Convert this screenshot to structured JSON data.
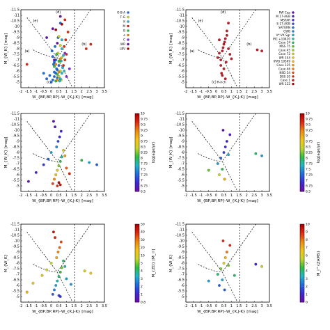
{
  "palette": {
    "rainbow": [
      "#6a0dad",
      "#3b2bd6",
      "#1f6fe0",
      "#21b8c9",
      "#2fbf3a",
      "#c8d52a",
      "#f2c418",
      "#f08a10",
      "#e02a10",
      "#b00000"
    ],
    "category_colors": {
      "O-B-A": "#1f6fe0",
      "F-G": "#c8d52a",
      "K": "#21b8c9",
      "M": "#e02a10",
      "B": "#2fbf3a",
      "e": "#f08a10",
      "C": "#8a2be2",
      "WR": "#6a0dad",
      "LBV": "#b00000"
    }
  },
  "chart_data": [
    {
      "type": "scatter",
      "panel": "top-left",
      "xlabel": "W_{BP,BP,RP}-W_{K,J-K} [mag]",
      "ylabel": "M_{W_K} [mag]",
      "xlim": [
        -2,
        3.5
      ],
      "ylim": [
        -4.5,
        -11.5
      ],
      "xticks": [
        "-2",
        "-1.5",
        "-1",
        "-0.5",
        "0",
        "0.5",
        "1",
        "1.5",
        "2",
        "2.5",
        "3",
        "3.5"
      ],
      "yticks": [
        "-11.5",
        "-11",
        "-10.5",
        "-10",
        "-9.5",
        "-9",
        "-8.5",
        "-8",
        "-7.5",
        "-7",
        "-6.5",
        "-6",
        "-5.5",
        "-5"
      ],
      "region_labels": [
        "(a)",
        "(b)",
        "(c)",
        "(d)",
        "(e)"
      ],
      "legend": {
        "placement": "right",
        "entries": [
          "O-B-A",
          "F-G",
          "K",
          "M",
          "B",
          "e",
          "C",
          "WR",
          "LBV"
        ]
      },
      "series": [
        {
          "name": "O-B-A",
          "x": [
            0.1,
            0.2,
            0.3,
            0.4,
            0.0,
            0.5,
            0.2,
            -0.1,
            0.3,
            0.1,
            0.4,
            0.2,
            0.35,
            0.15,
            0.05,
            -0.3,
            -0.5,
            0.25,
            0.45,
            0.6
          ],
          "y": [
            -5.2,
            -5.5,
            -5.8,
            -6.1,
            -5.0,
            -6.5,
            -6.8,
            -5.6,
            -7.0,
            -7.3,
            -5.4,
            -5.9,
            -6.2,
            -6.6,
            -7.8,
            -5.3,
            -5.8,
            -8.2,
            -9.0,
            -10.3
          ]
        },
        {
          "name": "F-G",
          "x": [
            0.5,
            0.6,
            0.55,
            0.7,
            0.45,
            0.65,
            0.6,
            0.5
          ],
          "y": [
            -5.5,
            -6.0,
            -6.8,
            -7.2,
            -7.6,
            -5.2,
            -8.3,
            -9.1
          ]
        },
        {
          "name": "K",
          "x": [
            0.6,
            0.7,
            0.75,
            0.65,
            0.8,
            0.7,
            0.55,
            0.85,
            0.7
          ],
          "y": [
            -5.3,
            -5.8,
            -6.3,
            -6.9,
            -7.4,
            -8.0,
            -5.1,
            -6.0,
            -8.8
          ]
        },
        {
          "name": "M",
          "x": [
            0.8,
            0.9,
            1.0,
            0.85,
            0.95,
            1.1,
            0.9,
            2.3,
            2.6,
            -1.6
          ],
          "y": [
            -6.5,
            -7.0,
            -7.5,
            -8.2,
            -8.8,
            -9.5,
            -10.6,
            -8.0,
            -8.4,
            -6.6
          ]
        },
        {
          "name": "B",
          "x": [
            0.3,
            0.4,
            0.2,
            0.5,
            0.35
          ],
          "y": [
            -5.1,
            -5.7,
            -6.4,
            -6.9,
            -7.5
          ]
        },
        {
          "name": "e",
          "x": [
            0.4,
            0.5,
            0.3,
            0.6
          ],
          "y": [
            -5.2,
            -5.9,
            -6.6,
            -7.1
          ]
        },
        {
          "name": "C",
          "x": [
            1.0,
            1.2,
            0.9
          ],
          "y": [
            -5.5,
            -6.2,
            -7.6
          ]
        },
        {
          "name": "WR",
          "x": [
            0.2,
            0.4,
            0.1,
            0.6,
            -0.3
          ],
          "y": [
            -7.0,
            -8.5,
            -9.8,
            -10.9,
            -9.0
          ]
        },
        {
          "name": "LBV",
          "x": [
            0.3,
            0.7
          ],
          "y": [
            -9.7,
            -10.2
          ]
        }
      ]
    },
    {
      "type": "scatter",
      "panel": "top-right",
      "xlabel": "W_{BP,BP,RP}-W_{K,J-K} [mag]",
      "ylabel": "M_{W_K} [mag]",
      "xlim": [
        -2,
        3.5
      ],
      "ylim": [
        -4.5,
        -11.5
      ],
      "xticks": [
        "-2",
        "-1.5",
        "-1",
        "-0.5",
        "0",
        "0.5",
        "1",
        "1.5",
        "2",
        "2.5",
        "3",
        "3.5"
      ],
      "yticks": [
        "-11.5",
        "-11",
        "-10.5",
        "-10",
        "-9.5",
        "-9",
        "-8.5",
        "-8",
        "-7.5",
        "-7",
        "-6.5",
        "-6",
        "-5.5",
        "-5"
      ],
      "region_labels": [
        "(a)",
        "(b)",
        "(c)",
        "(d)",
        "(e)"
      ],
      "annotation": "R-rich",
      "legend": {
        "placement": "right",
        "entries": [
          "RW Cep",
          "M 17-AGB",
          "MSTAR",
          "S 17-AGB",
          "SATURN",
          "CWB",
          "V* VX Sgr",
          "IRC +10420",
          "Case 14",
          "MSS 75",
          "Case 45",
          "Case 72",
          "WR 104",
          "IRAS 19569",
          "Case 125",
          "Case 46",
          "NSD 54",
          "DSS 20",
          "Case 1",
          "WR 122"
        ]
      },
      "series": [
        {
          "name": "stars",
          "x": [
            0.1,
            0.2,
            0.3,
            0.4,
            0.45,
            0.5,
            0.55,
            0.6,
            0.7,
            0.8,
            0.3,
            0.5,
            0.65,
            0.2,
            0.9,
            1.0,
            0.4,
            0.6,
            0.35,
            2.7,
            3.0,
            0.7,
            0.8
          ],
          "y": [
            -7.2,
            -7.6,
            -7.0,
            -7.8,
            -8.1,
            -8.4,
            -8.6,
            -8.9,
            -9.2,
            -8.0,
            -6.5,
            -6.2,
            -6.8,
            -8.8,
            -7.5,
            -7.1,
            -5.6,
            -5.3,
            -5.8,
            -7.9,
            -7.8,
            -9.6,
            -10.3
          ]
        }
      ]
    },
    {
      "type": "scatter",
      "panel": "middle-left",
      "xlabel": "W_{BP,BP,RP}-W_{K,J-K} [mag]",
      "ylabel": "M_{W_K} [mag]",
      "xlim": [
        -2,
        3.5
      ],
      "ylim": [
        -4.5,
        -11.5
      ],
      "colorbar": {
        "label": "log(age/yr)",
        "min": 6.5,
        "max": 10,
        "ticks": [
          "6.5",
          "6.75",
          "7",
          "7.25",
          "7.5",
          "7.75",
          "8",
          "8.25",
          "8.5",
          "8.75",
          "9",
          "9.25",
          "9.5",
          "9.75",
          "10"
        ]
      },
      "series": [
        {
          "name": "stars",
          "x": [
            0.1,
            0.2,
            0.3,
            0.4,
            0.5,
            0.6,
            0.7,
            0.0,
            -0.2,
            -0.5,
            -1.0,
            -1.5,
            0.35,
            0.45,
            0.55,
            0.65,
            0.25,
            0.15,
            0.8,
            0.9,
            1.0,
            1.2,
            2.0,
            2.5,
            3.0,
            0.5,
            0.6,
            0.4
          ],
          "y": [
            -5.2,
            -5.6,
            -6.0,
            -6.4,
            -6.8,
            -7.2,
            -7.6,
            -8.0,
            -7.4,
            -6.9,
            -6.2,
            -5.4,
            -8.5,
            -9.0,
            -9.4,
            -9.9,
            -10.3,
            -10.8,
            -8.2,
            -7.7,
            -6.6,
            -6.1,
            -7.3,
            -7.1,
            -6.9,
            -5.3,
            -5.1,
            -5.0
          ],
          "c": [
            9.5,
            9.2,
            8.9,
            8.6,
            8.3,
            8.0,
            7.8,
            7.5,
            7.2,
            7.0,
            6.8,
            6.6,
            7.4,
            7.1,
            6.9,
            6.8,
            6.7,
            6.6,
            8.8,
            9.1,
            9.4,
            9.7,
            8.0,
            7.6,
            7.2,
            9.9,
            9.8,
            9.6
          ]
        }
      ]
    },
    {
      "type": "scatter",
      "panel": "middle-right",
      "xlabel": "W_{BP,BP,RP}-W_{K,J-K} [mag]",
      "ylabel": "M_{W_K} [mag]",
      "xlim": [
        -2,
        3.5
      ],
      "ylim": [
        -4.5,
        -11.5
      ],
      "colorbar": {
        "label": "log(age/yr)",
        "min": 6.5,
        "max": 10,
        "ticks": [
          "6.5",
          "6.75",
          "7",
          "7.25",
          "7.5",
          "7.75",
          "8",
          "8.25",
          "8.5",
          "8.75",
          "9",
          "9.25",
          "9.5",
          "9.75",
          "10"
        ]
      },
      "series": [
        {
          "name": "stars",
          "x": [
            0.1,
            0.3,
            0.5,
            0.6,
            0.7,
            0.4,
            0.2,
            0.8,
            0.9,
            2.6,
            3.0,
            -0.5,
            0.45,
            0.55
          ],
          "y": [
            -7.0,
            -7.5,
            -8.0,
            -8.5,
            -9.0,
            -6.5,
            -6.0,
            -7.8,
            -9.6,
            -7.9,
            -7.7,
            -6.4,
            -10.0,
            -5.6
          ],
          "c": [
            7.5,
            7.2,
            7.0,
            6.9,
            6.8,
            8.0,
            8.5,
            7.6,
            6.7,
            7.9,
            7.5,
            8.2,
            6.6,
            9.0
          ]
        }
      ]
    },
    {
      "type": "scatter",
      "panel": "bottom-left",
      "xlabel": "W_{BP,BP,RP}-W_{K,J-K} [mag]",
      "ylabel": "M_{W_K}",
      "xlim": [
        -2,
        3.5
      ],
      "ylim": [
        -4.5,
        -11.5
      ],
      "colorbar": {
        "label": "M_{ZO} [M_☉]",
        "min": 0.8,
        "max": 50,
        "ticks": [
          "50",
          "40",
          "30",
          "20",
          "10",
          "5",
          "4",
          "3",
          "2",
          "1",
          "0.8"
        ]
      },
      "series": [
        {
          "name": "stars",
          "x": [
            0.1,
            0.2,
            0.3,
            0.4,
            0.5,
            0.6,
            0.7,
            0.0,
            -0.3,
            -0.6,
            -1.2,
            -1.6,
            0.35,
            0.45,
            0.55,
            0.65,
            0.25,
            0.15,
            0.8,
            0.9,
            1.0,
            1.3,
            2.2,
            2.6,
            0.5,
            0.6
          ],
          "y": [
            -5.2,
            -5.6,
            -6.0,
            -6.4,
            -6.8,
            -7.2,
            -7.6,
            -8.0,
            -7.4,
            -6.9,
            -6.2,
            -5.4,
            -8.5,
            -9.0,
            -9.4,
            -9.9,
            -10.3,
            -10.8,
            -8.2,
            -7.7,
            -6.6,
            -6.1,
            -7.3,
            -7.1,
            -5.1,
            -5.0
          ],
          "c": [
            0.2,
            0.25,
            0.3,
            0.35,
            0.4,
            0.45,
            0.5,
            0.55,
            0.6,
            0.62,
            0.65,
            0.7,
            0.72,
            0.78,
            0.82,
            0.86,
            0.9,
            0.95,
            0.4,
            0.35,
            0.3,
            0.28,
            0.6,
            0.65,
            0.15,
            0.12
          ]
        }
      ]
    },
    {
      "type": "scatter",
      "panel": "bottom-right",
      "xlabel": "W_{BP,BP,RP}-W_{K,J-K} [mag]",
      "ylabel": "M_{W_K}",
      "xlim": [
        -2,
        3.5
      ],
      "ylim": [
        -4.5,
        -11.5
      ],
      "colorbar": {
        "label": "M_i^{ZAMS}",
        "min": 0,
        "max": 10,
        "ticks": [
          "0",
          "1",
          "2",
          "3",
          "4",
          "5",
          "6",
          "7",
          "8",
          "9",
          "10"
        ]
      },
      "series": [
        {
          "name": "stars",
          "x": [
            0.1,
            0.3,
            0.5,
            0.6,
            0.7,
            0.4,
            0.2,
            0.8,
            0.9,
            2.6,
            3.0,
            -0.5,
            0.45,
            0.55,
            1.2
          ],
          "y": [
            -7.0,
            -7.5,
            -8.0,
            -8.5,
            -9.0,
            -6.5,
            -6.0,
            -7.8,
            -9.6,
            -7.9,
            -7.7,
            -6.4,
            -10.0,
            -5.6,
            -6.9
          ],
          "c": [
            4,
            5,
            6,
            7,
            8,
            3,
            2,
            5,
            9,
            1,
            6,
            3,
            9,
            2,
            4
          ]
        }
      ]
    }
  ]
}
